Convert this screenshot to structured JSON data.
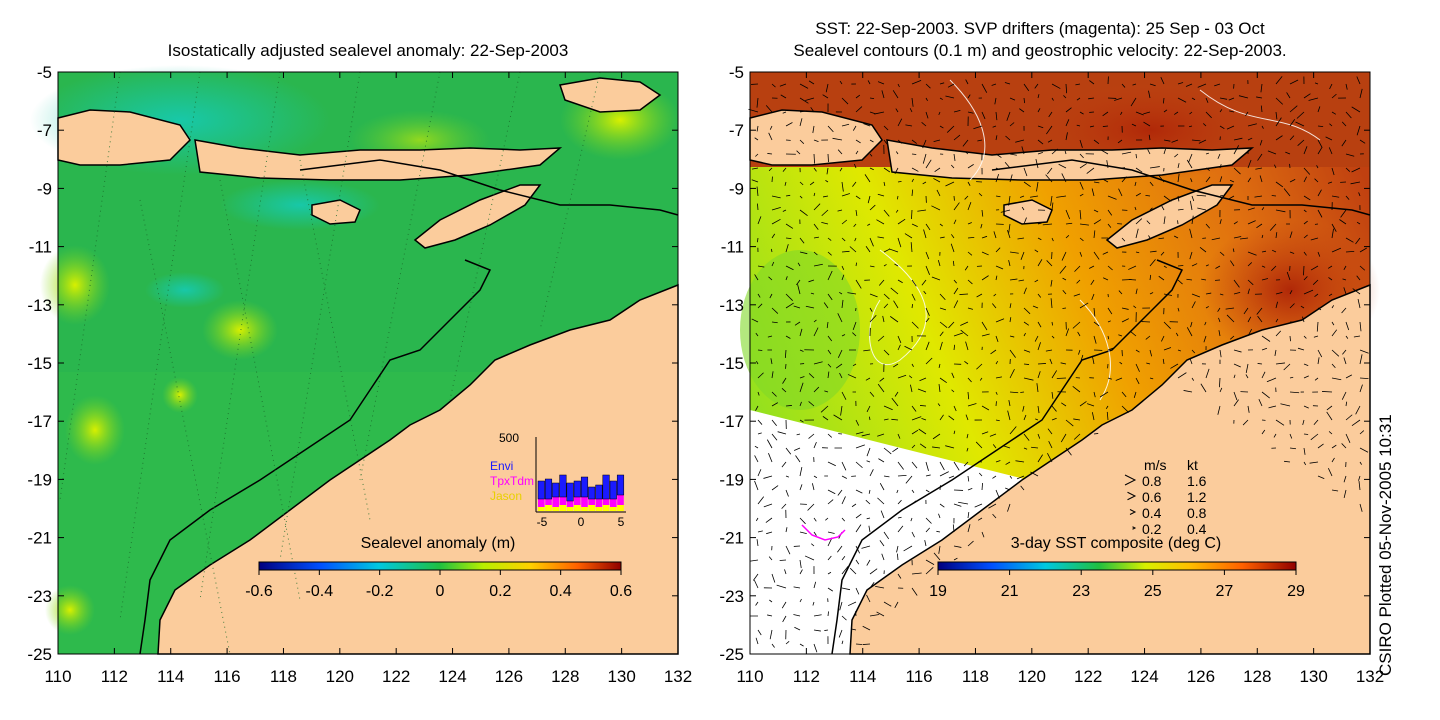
{
  "left_panel": {
    "title": "Isostatically adjusted sealevel anomaly: 22-Sep-2003",
    "x_ticks": [
      "110",
      "112",
      "114",
      "116",
      "118",
      "120",
      "122",
      "124",
      "126",
      "128",
      "130",
      "132"
    ],
    "y_ticks": [
      "-5",
      "-7",
      "-9",
      "-11",
      "-13",
      "-15",
      "-17",
      "-19",
      "-21",
      "-23",
      "-25"
    ],
    "colorbar": {
      "label": "Sealevel anomaly (m)",
      "ticks": [
        "-0.6",
        "-0.4",
        "-0.2",
        "0",
        "0.2",
        "0.4",
        "0.6"
      ]
    },
    "inset": {
      "y_max_label": "500",
      "x_ticks": [
        "-5",
        "0",
        "5"
      ],
      "legend": [
        {
          "name": "Envi",
          "color": "#1a1aff"
        },
        {
          "name": "TpxTdm",
          "color": "#ff00ff"
        },
        {
          "name": "Jason",
          "color": "#ffff00"
        }
      ]
    }
  },
  "right_panel": {
    "title_line1": "SST: 22-Sep-2003. SVP drifters (magenta): 25 Sep - 03 Oct",
    "title_line2": "Sealevel contours (0.1 m) and geostrophic velocity: 22-Sep-2003.",
    "x_ticks": [
      "110",
      "112",
      "114",
      "116",
      "118",
      "120",
      "122",
      "124",
      "126",
      "128",
      "130",
      "132"
    ],
    "y_ticks": [
      "-5",
      "-7",
      "-9",
      "-11",
      "-13",
      "-15",
      "-17",
      "-19",
      "-21",
      "-23",
      "-25"
    ],
    "colorbar": {
      "label": "3-day SST composite (deg C)",
      "ticks": [
        "19",
        "21",
        "23",
        "25",
        "27",
        "29"
      ]
    },
    "speed_legend": {
      "header_ms": "m/s",
      "header_kt": "kt",
      "rows": [
        {
          "ms": "0.8",
          "kt": "1.6"
        },
        {
          "ms": "0.6",
          "kt": "1.2"
        },
        {
          "ms": "0.4",
          "kt": "0.8"
        },
        {
          "ms": "0.2",
          "kt": "0.4"
        }
      ]
    }
  },
  "footer": {
    "stamp": "CSIRO Plotted 05-Nov-2005 10:31"
  },
  "colors": {
    "land": "#fbcc9c",
    "sla_background": "#20b44a",
    "sst_background": "#e68a10",
    "no_data": "#ffffff",
    "drifter": "#ff00ff"
  }
}
